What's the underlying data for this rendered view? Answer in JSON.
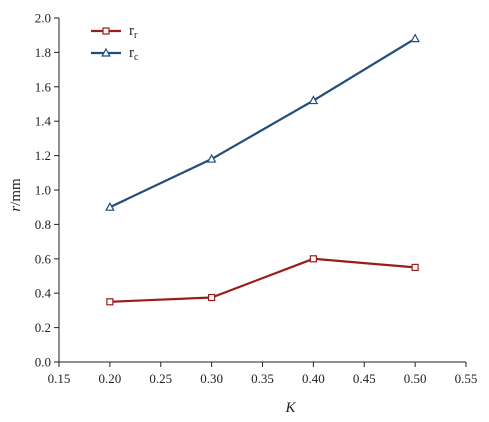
{
  "chart_data": {
    "type": "line",
    "title": "",
    "xlabel": "K",
    "ylabel": "r",
    "ylabel_unit": "/mm",
    "xlim": [
      0.15,
      0.55
    ],
    "ylim": [
      0.0,
      2.0
    ],
    "xticks": [
      "0.15",
      "0.20",
      "0.25",
      "0.30",
      "0.35",
      "0.40",
      "0.45",
      "0.50",
      "0.55"
    ],
    "yticks": [
      "0.0",
      "0.2",
      "0.4",
      "0.6",
      "0.8",
      "1.0",
      "1.2",
      "1.4",
      "1.6",
      "1.8",
      "2.0"
    ],
    "grid": false,
    "legend_position": "top-left",
    "x": [
      0.2,
      0.3,
      0.4,
      0.5
    ],
    "series": [
      {
        "name": "r",
        "name_sub": "r",
        "marker": "square",
        "color": "#9b1c1c",
        "values": [
          0.35,
          0.375,
          0.6,
          0.55
        ]
      },
      {
        "name": "r",
        "name_sub": "c",
        "marker": "triangle",
        "color": "#1f4e79",
        "values": [
          0.9,
          1.18,
          1.52,
          1.88
        ]
      }
    ]
  }
}
